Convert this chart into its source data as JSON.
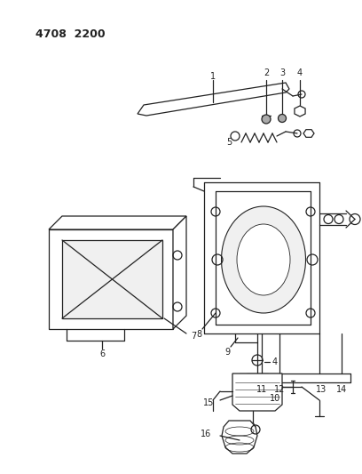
{
  "title": "4708  2200",
  "bg_color": "#ffffff",
  "line_color": "#222222",
  "figsize": [
    4.08,
    5.33
  ],
  "dpi": 100
}
